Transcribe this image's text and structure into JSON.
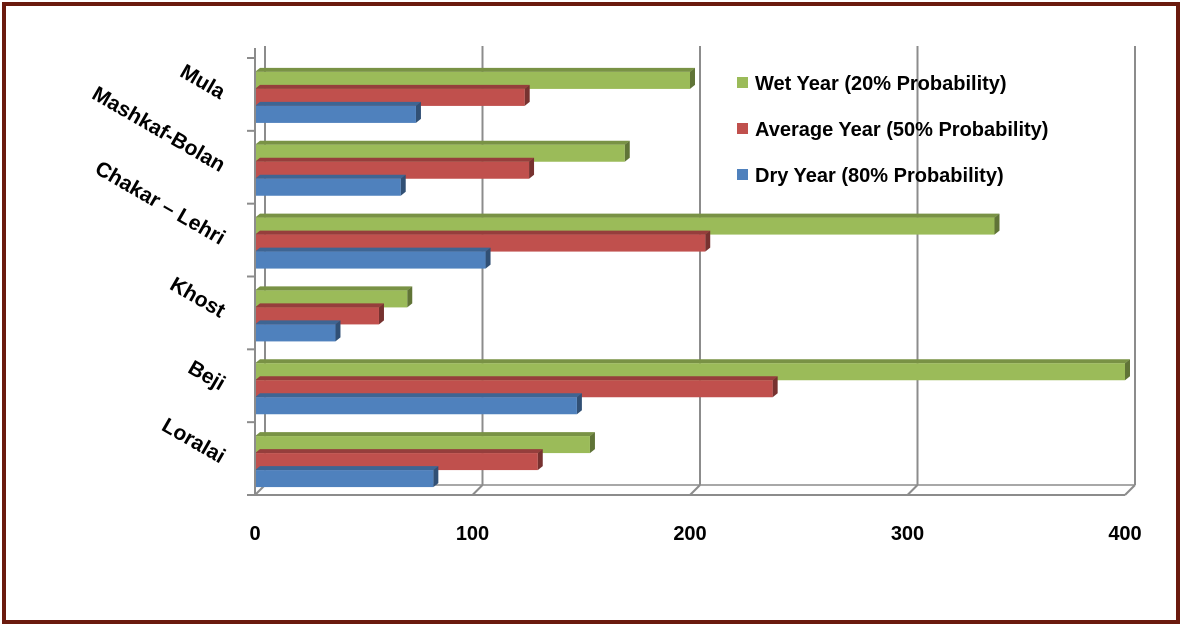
{
  "colors": {
    "border": "#6b1a0e",
    "grid": "#8c8c8c",
    "wet": "#9bbb59",
    "average": "#c0504d",
    "dry": "#4f81bd"
  },
  "chart_data": {
    "type": "bar",
    "orientation": "horizontal",
    "style": "3d-clustered",
    "categories": [
      "Mula",
      "Mashkaf-Bolan",
      "Chakar – Lehri",
      "Khost",
      "Beji",
      "Loralai"
    ],
    "series": [
      {
        "name": "Wet Year (20% Probability)",
        "color": "#9bbb59",
        "values": [
          200,
          170,
          340,
          70,
          400,
          154
        ]
      },
      {
        "name": "Average Year (50% Probability)",
        "color": "#c0504d",
        "values": [
          124,
          126,
          207,
          57,
          238,
          130
        ]
      },
      {
        "name": "Dry Year (80% Probability)",
        "color": "#4f81bd",
        "values": [
          74,
          67,
          106,
          37,
          148,
          82
        ]
      }
    ],
    "xticks": [
      "0",
      "100",
      "200",
      "300",
      "400"
    ],
    "xlim": [
      0,
      400
    ],
    "title": "",
    "xlabel": "",
    "ylabel": "",
    "grid": true,
    "legend_position": "top-right"
  }
}
